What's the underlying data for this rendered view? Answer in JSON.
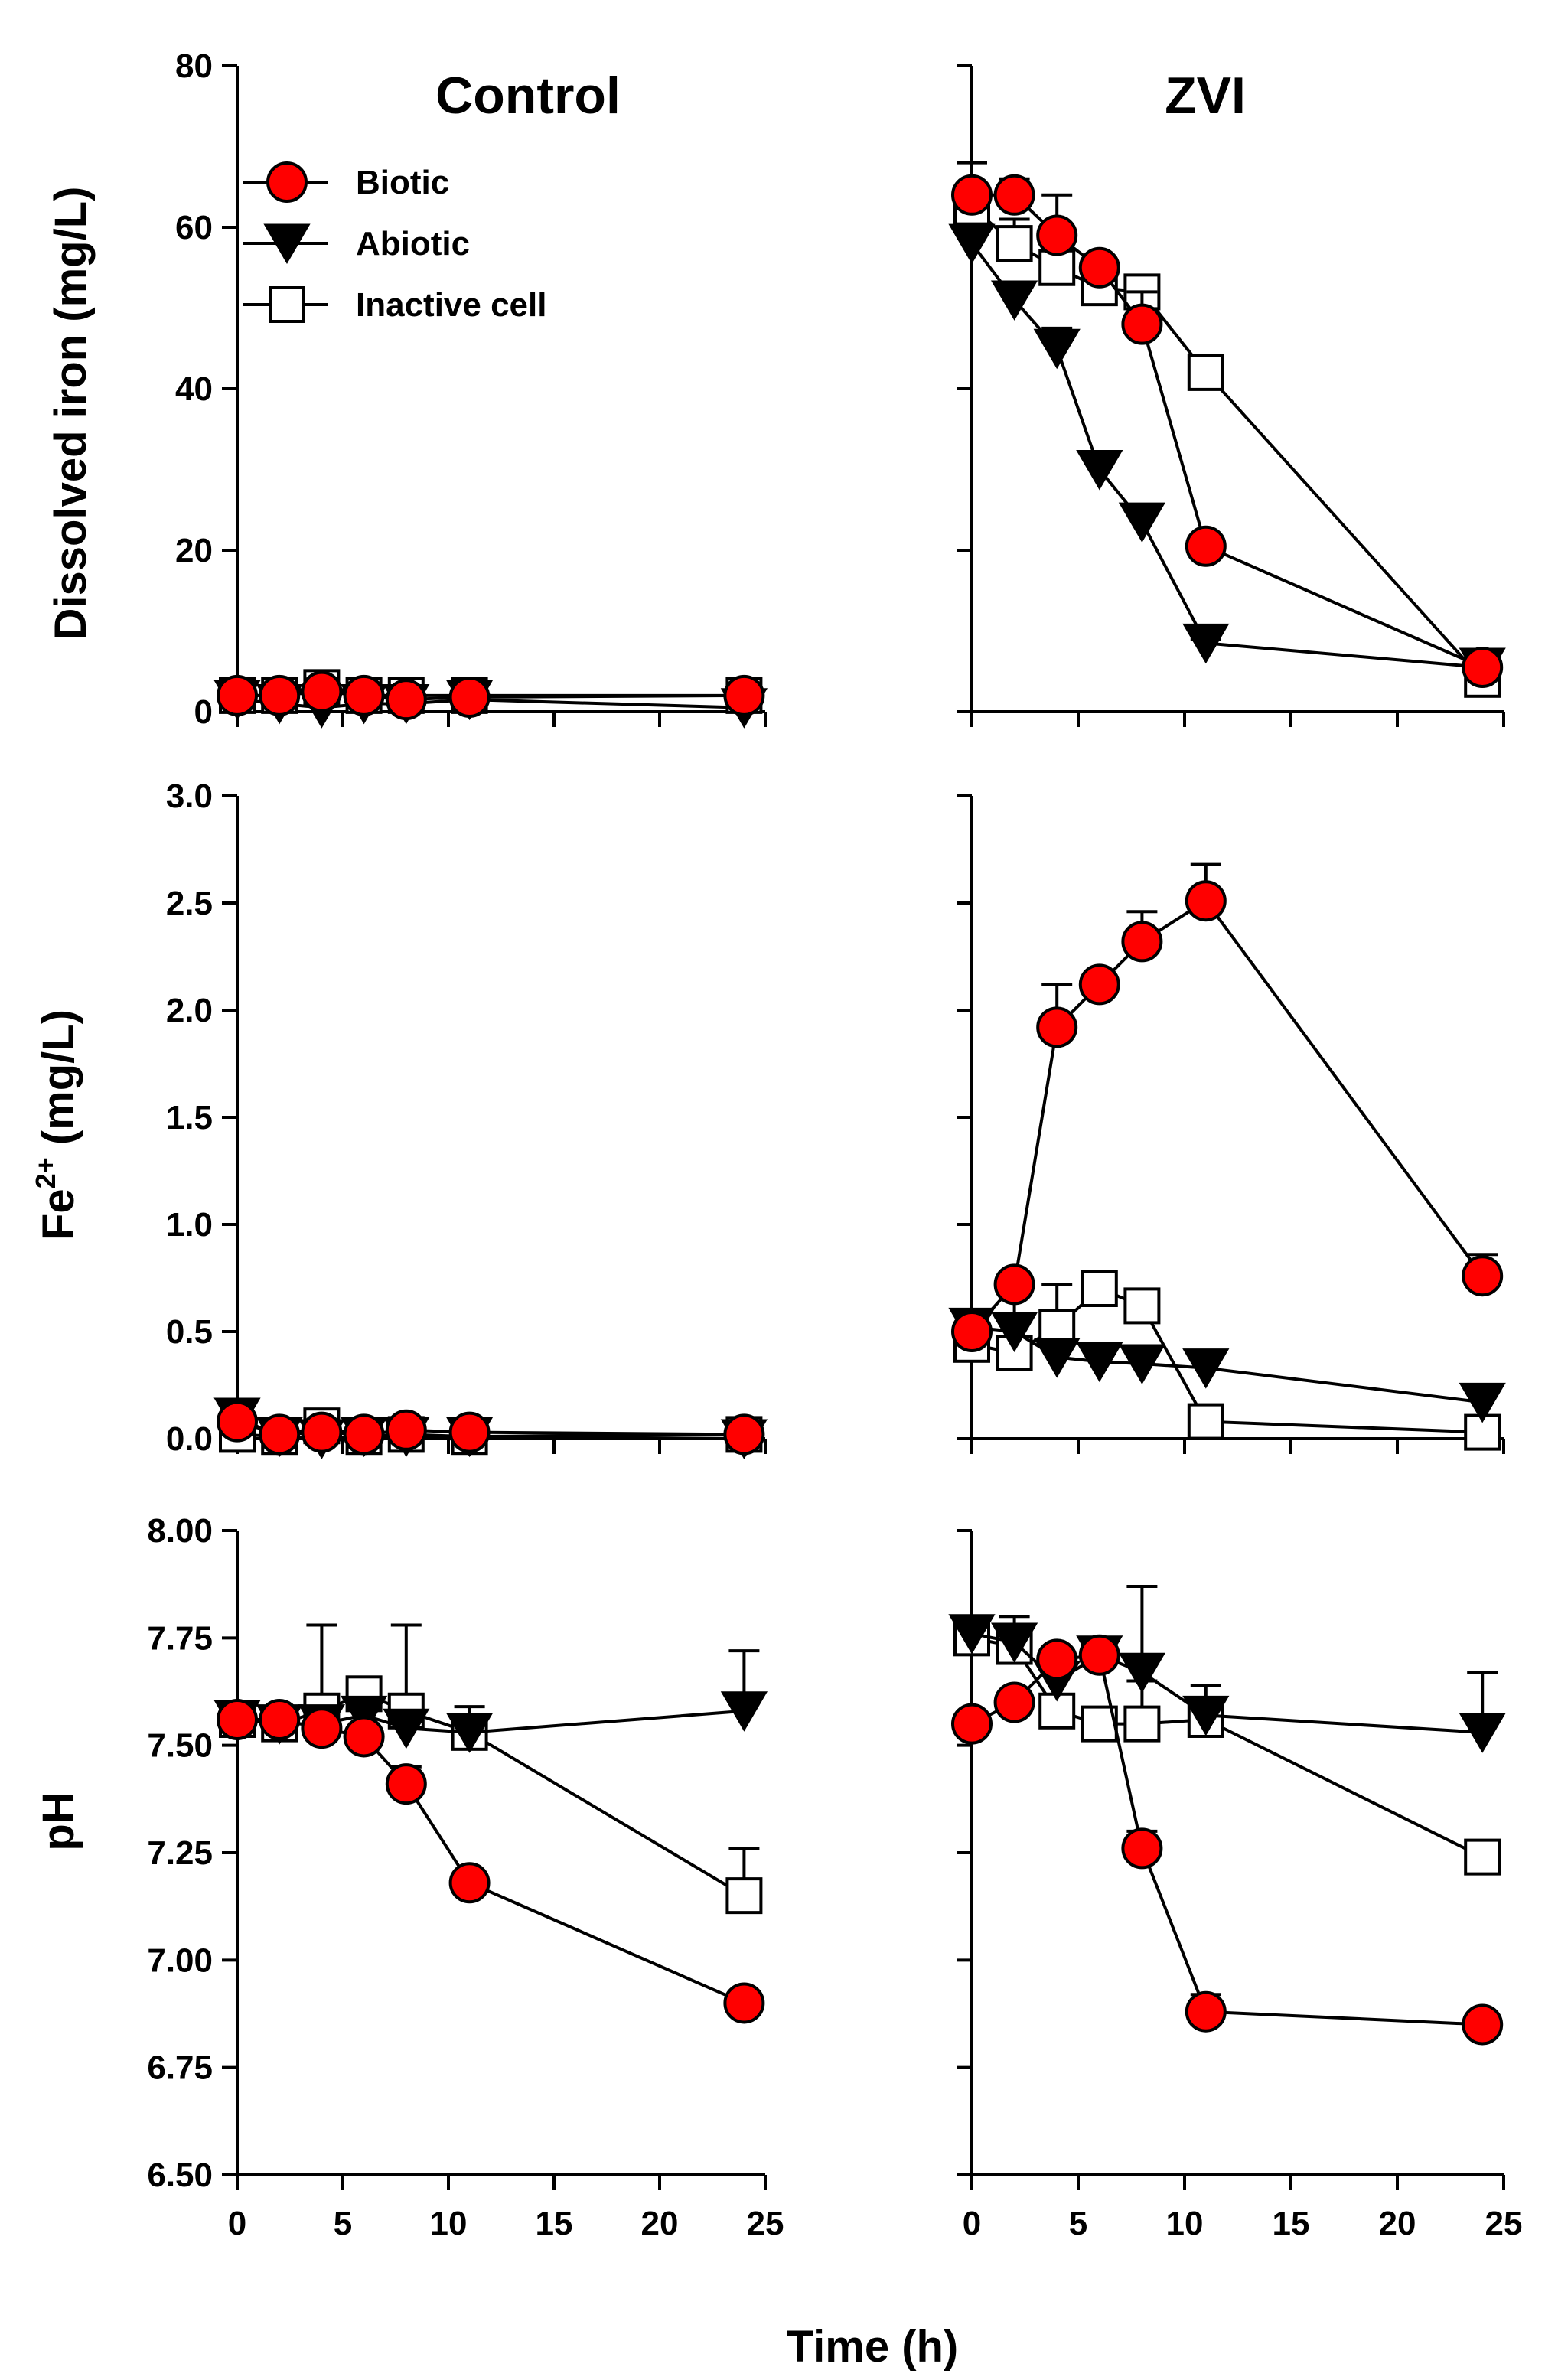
{
  "figure": {
    "xlabel": "Time (h)",
    "column_titles": [
      "Control",
      "ZVI"
    ],
    "legend": [
      {
        "name": "Biotic",
        "marker": "circle",
        "color": "#ff0000"
      },
      {
        "name": "Abiotic",
        "marker": "triangle-down",
        "color": "#000000"
      },
      {
        "name": "Inactive cell",
        "marker": "square",
        "color": "#ffffff"
      }
    ]
  },
  "chart_data": [
    {
      "id": "control-dissolved-iron",
      "type": "scatter",
      "title": "Control",
      "xlabel": "",
      "ylabel": "Dissolved iron (mg/L)",
      "xlim": [
        0,
        25
      ],
      "ylim": [
        0,
        80
      ],
      "xticks": [
        0,
        5,
        10,
        15,
        20,
        25
      ],
      "yticks": [
        0,
        20,
        40,
        60,
        80
      ],
      "ytick_labels": [
        "0",
        "20",
        "40",
        "60",
        "80"
      ],
      "show_xtick_labels": false,
      "series": [
        {
          "name": "Biotic",
          "x": [
            0,
            2,
            4,
            6,
            8,
            11,
            24
          ],
          "y": [
            2,
            2,
            2.5,
            2,
            1.5,
            1.8,
            2
          ],
          "err": []
        },
        {
          "name": "Abiotic",
          "x": [
            0,
            2,
            4,
            6,
            8,
            11,
            24
          ],
          "y": [
            1.5,
            1,
            0.5,
            1,
            1,
            1.5,
            0.5
          ],
          "err": []
        },
        {
          "name": "Inactive cell",
          "x": [
            0,
            2,
            4,
            6,
            8,
            11,
            24
          ],
          "y": [
            2,
            2,
            3,
            2,
            2,
            2,
            2
          ],
          "err": []
        }
      ]
    },
    {
      "id": "zvi-dissolved-iron",
      "type": "scatter",
      "title": "ZVI",
      "xlabel": "",
      "ylabel": "",
      "xlim": [
        0,
        25
      ],
      "ylim": [
        0,
        80
      ],
      "xticks": [
        0,
        5,
        10,
        15,
        20,
        25
      ],
      "yticks": [
        0,
        20,
        40,
        60,
        80
      ],
      "ytick_labels": [],
      "show_xtick_labels": false,
      "series": [
        {
          "name": "Biotic",
          "x": [
            0,
            2,
            4,
            6,
            8,
            11,
            24
          ],
          "y": [
            64,
            64,
            59,
            55,
            48,
            20.5,
            5.5
          ],
          "err": [
            4,
            2,
            5,
            1,
            4,
            1,
            1
          ]
        },
        {
          "name": "Abiotic",
          "x": [
            0,
            2,
            4,
            6,
            8,
            11,
            24
          ],
          "y": [
            58,
            51,
            45,
            30,
            23.5,
            8.5,
            5.5
          ],
          "err": [
            2,
            1.5,
            2.5,
            1,
            1,
            0.5,
            0.5
          ]
        },
        {
          "name": "Inactive cell",
          "x": [
            0,
            2,
            4,
            6,
            8,
            11,
            24
          ],
          "y": [
            62.5,
            58,
            55,
            52.5,
            52,
            42,
            4
          ],
          "err": [
            3,
            3,
            2,
            1,
            1,
            1,
            1
          ]
        }
      ]
    },
    {
      "id": "control-fe2",
      "type": "scatter",
      "title": "",
      "xlabel": "",
      "ylabel": "Fe2+ (mg/L)",
      "xlim": [
        0,
        25
      ],
      "ylim": [
        0,
        3
      ],
      "xticks": [
        0,
        5,
        10,
        15,
        20,
        25
      ],
      "yticks": [
        0,
        0.5,
        1,
        1.5,
        2,
        2.5,
        3
      ],
      "ytick_labels": [
        "0.0",
        "0.5",
        "1.0",
        "1.5",
        "2.0",
        "2.5",
        "3.0"
      ],
      "show_xtick_labels": false,
      "series": [
        {
          "name": "Biotic",
          "x": [
            0,
            2,
            4,
            6,
            8,
            11,
            24
          ],
          "y": [
            0.08,
            0.02,
            0.03,
            0.02,
            0.04,
            0.03,
            0.02
          ],
          "err": []
        },
        {
          "name": "Abiotic",
          "x": [
            0,
            2,
            4,
            6,
            8,
            11,
            24
          ],
          "y": [
            0.1,
            0.01,
            0.0,
            0.01,
            0.01,
            0.01,
            0.0
          ],
          "err": []
        },
        {
          "name": "Inactive cell",
          "x": [
            0,
            2,
            4,
            6,
            8,
            11,
            24
          ],
          "y": [
            0.02,
            0.01,
            0.06,
            0.01,
            0.02,
            0.01,
            0.02
          ],
          "err": []
        }
      ]
    },
    {
      "id": "zvi-fe2",
      "type": "scatter",
      "title": "",
      "xlabel": "",
      "ylabel": "",
      "xlim": [
        0,
        25
      ],
      "ylim": [
        0,
        3
      ],
      "xticks": [
        0,
        5,
        10,
        15,
        20,
        25
      ],
      "yticks": [
        0,
        0.5,
        1,
        1.5,
        2,
        2.5,
        3
      ],
      "ytick_labels": [],
      "show_xtick_labels": false,
      "series": [
        {
          "name": "Biotic",
          "x": [
            0,
            2,
            4,
            6,
            8,
            11,
            24
          ],
          "y": [
            0.5,
            0.72,
            1.92,
            2.12,
            2.32,
            2.51,
            0.76
          ],
          "err": [
            0.05,
            0.06,
            0.2,
            0.05,
            0.14,
            0.17,
            0.1
          ]
        },
        {
          "name": "Abiotic",
          "x": [
            0,
            2,
            4,
            6,
            8,
            11,
            24
          ],
          "y": [
            0.52,
            0.5,
            0.38,
            0.36,
            0.35,
            0.33,
            0.17
          ],
          "err": [
            0.05,
            0.08,
            0.06,
            0.05,
            0.05,
            0.04,
            0.03
          ]
        },
        {
          "name": "Inactive cell",
          "x": [
            0,
            2,
            4,
            6,
            8,
            11,
            24
          ],
          "y": [
            0.44,
            0.4,
            0.52,
            0.7,
            0.62,
            0.08,
            0.03
          ],
          "err": [
            0.1,
            0.35,
            0.2,
            0.05,
            0.05,
            0.03,
            0.02
          ]
        }
      ]
    },
    {
      "id": "control-ph",
      "type": "scatter",
      "title": "",
      "xlabel": "",
      "ylabel": "pH",
      "xlim": [
        0,
        25
      ],
      "ylim": [
        6.5,
        8
      ],
      "xticks": [
        0,
        5,
        10,
        15,
        20,
        25
      ],
      "yticks": [
        6.5,
        6.75,
        7,
        7.25,
        7.5,
        7.75,
        8
      ],
      "ytick_labels": [
        "6.50",
        "6.75",
        "7.00",
        "7.25",
        "7.50",
        "7.75",
        "8.00"
      ],
      "xtick_labels": [
        "0",
        "5",
        "10",
        "15",
        "20",
        "25"
      ],
      "show_xtick_labels": true,
      "series": [
        {
          "name": "Biotic",
          "x": [
            0,
            2,
            4,
            6,
            8,
            11,
            24
          ],
          "y": [
            7.56,
            7.56,
            7.54,
            7.52,
            7.41,
            7.18,
            6.9
          ],
          "err": [
            0.02,
            0.02,
            0.03,
            0.03,
            0.04,
            0.02,
            0.02
          ]
        },
        {
          "name": "Abiotic",
          "x": [
            0,
            2,
            4,
            6,
            8,
            11,
            24
          ],
          "y": [
            7.56,
            7.55,
            7.55,
            7.57,
            7.54,
            7.53,
            7.58
          ],
          "err": [
            0.02,
            0.02,
            0.02,
            0.02,
            0.02,
            0.02,
            0.14
          ]
        },
        {
          "name": "Inactive cell",
          "x": [
            0,
            2,
            4,
            6,
            8,
            11,
            24
          ],
          "y": [
            7.56,
            7.55,
            7.58,
            7.62,
            7.58,
            7.53,
            7.15
          ],
          "err": [
            0.02,
            0.02,
            0.2,
            0.03,
            0.2,
            0.06,
            0.11
          ]
        }
      ]
    },
    {
      "id": "zvi-ph",
      "type": "scatter",
      "title": "",
      "xlabel": "",
      "ylabel": "",
      "xlim": [
        0,
        25
      ],
      "ylim": [
        6.5,
        8
      ],
      "xticks": [
        0,
        5,
        10,
        15,
        20,
        25
      ],
      "yticks": [
        6.5,
        6.75,
        7,
        7.25,
        7.5,
        7.75,
        8
      ],
      "ytick_labels": [],
      "xtick_labels": [
        "0",
        "5",
        "10",
        "15",
        "20",
        "25"
      ],
      "show_xtick_labels": true,
      "series": [
        {
          "name": "Biotic",
          "x": [
            0,
            2,
            4,
            6,
            8,
            11,
            24
          ],
          "y": [
            7.55,
            7.6,
            7.7,
            7.71,
            7.26,
            6.88,
            6.85
          ],
          "err": [
            0.02,
            0.02,
            0.02,
            0.02,
            0.04,
            0.04,
            0.02
          ]
        },
        {
          "name": "Abiotic",
          "x": [
            0,
            2,
            4,
            6,
            8,
            11,
            24
          ],
          "y": [
            7.76,
            7.74,
            7.65,
            7.71,
            7.67,
            7.57,
            7.53
          ],
          "err": [
            0.02,
            0.06,
            0.02,
            0.02,
            0.2,
            0.07,
            0.14
          ]
        },
        {
          "name": "Inactive cell",
          "x": [
            0,
            2,
            4,
            6,
            8,
            11,
            24
          ],
          "y": [
            7.75,
            7.73,
            7.58,
            7.55,
            7.55,
            7.56,
            7.24
          ],
          "err": [
            0.02,
            0.02,
            0.02,
            0.02,
            0.1,
            0.03,
            0.02
          ]
        }
      ]
    }
  ]
}
